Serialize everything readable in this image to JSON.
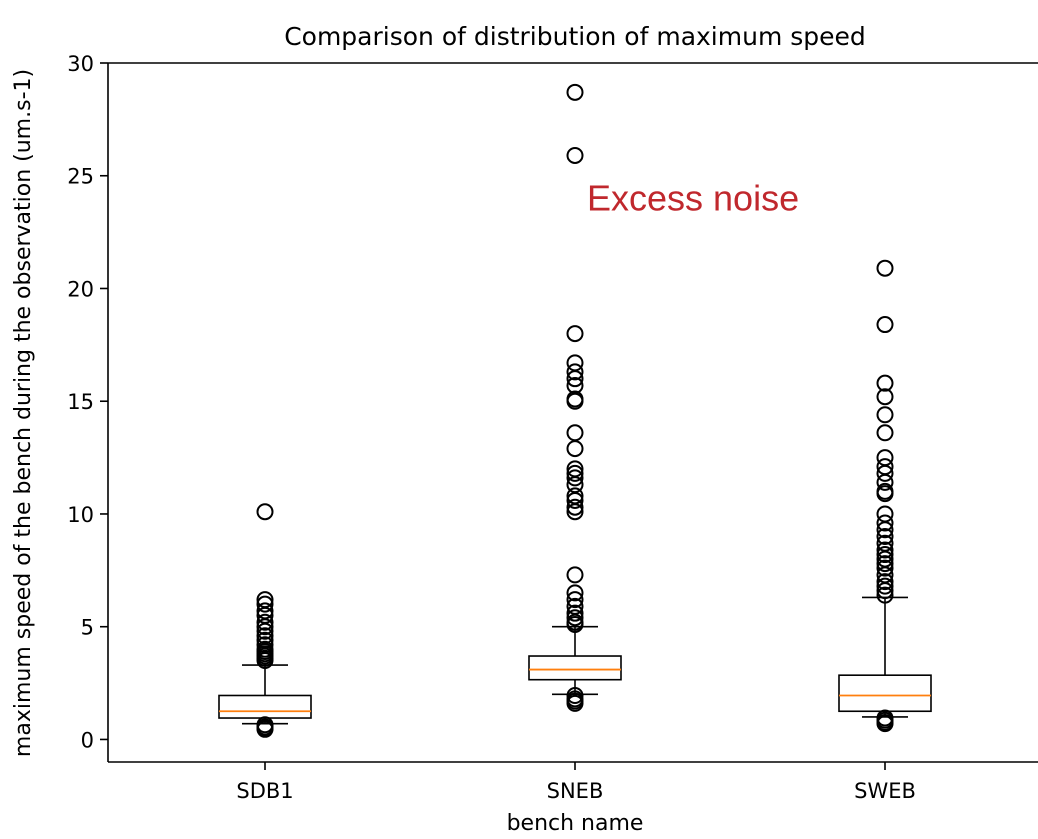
{
  "chart_data": {
    "type": "boxplot",
    "title": "Comparison of distribution of maximum speed",
    "xlabel": "bench name",
    "ylabel": "maximum speed of the bench during the observation (um.s-1)",
    "ylim": [
      -1,
      30
    ],
    "yticks": [
      0,
      5,
      10,
      15,
      20,
      25,
      30
    ],
    "grid": false,
    "annotation": {
      "text": "Excess noise",
      "x": "SNEB",
      "y": 24.0,
      "color": "#c0282d"
    },
    "colors": {
      "median": "#ff7f0e",
      "box": "#000000",
      "annotation": "#c0282d"
    },
    "categories": [
      "SDB1",
      "SNEB",
      "SWEB"
    ],
    "boxes": [
      {
        "name": "SDB1",
        "whisker_low": 0.7,
        "q1": 0.95,
        "median": 1.25,
        "q3": 1.95,
        "whisker_high": 3.3,
        "outliers": [
          10.1,
          6.2,
          6.0,
          5.7,
          5.5,
          5.2,
          5.0,
          4.8,
          4.6,
          4.4,
          4.2,
          4.0,
          3.9,
          3.8,
          3.7,
          3.6,
          3.5,
          0.65,
          0.55,
          0.5,
          0.45
        ]
      },
      {
        "name": "SNEB",
        "whisker_low": 2.0,
        "q1": 2.65,
        "median": 3.1,
        "q3": 3.7,
        "whisker_high": 5.0,
        "outliers": [
          28.7,
          25.9,
          18.0,
          16.7,
          16.3,
          16.0,
          15.7,
          15.1,
          15.0,
          13.6,
          12.9,
          12.0,
          11.8,
          11.6,
          11.3,
          10.8,
          10.6,
          10.3,
          10.1,
          7.3,
          6.5,
          6.2,
          5.9,
          5.6,
          5.4,
          5.2,
          5.1,
          1.95,
          1.8,
          1.7,
          1.6
        ]
      },
      {
        "name": "SWEB",
        "whisker_low": 1.0,
        "q1": 1.25,
        "median": 1.95,
        "q3": 2.85,
        "whisker_high": 6.3,
        "outliers": [
          20.9,
          18.4,
          15.8,
          15.2,
          14.4,
          13.6,
          12.5,
          12.1,
          11.8,
          11.4,
          11.0,
          10.9,
          10.0,
          9.6,
          9.3,
          9.0,
          8.7,
          8.4,
          8.2,
          8.0,
          7.8,
          7.6,
          7.3,
          7.0,
          6.8,
          6.6,
          6.4,
          0.95,
          0.85,
          0.75,
          0.7
        ]
      }
    ]
  }
}
